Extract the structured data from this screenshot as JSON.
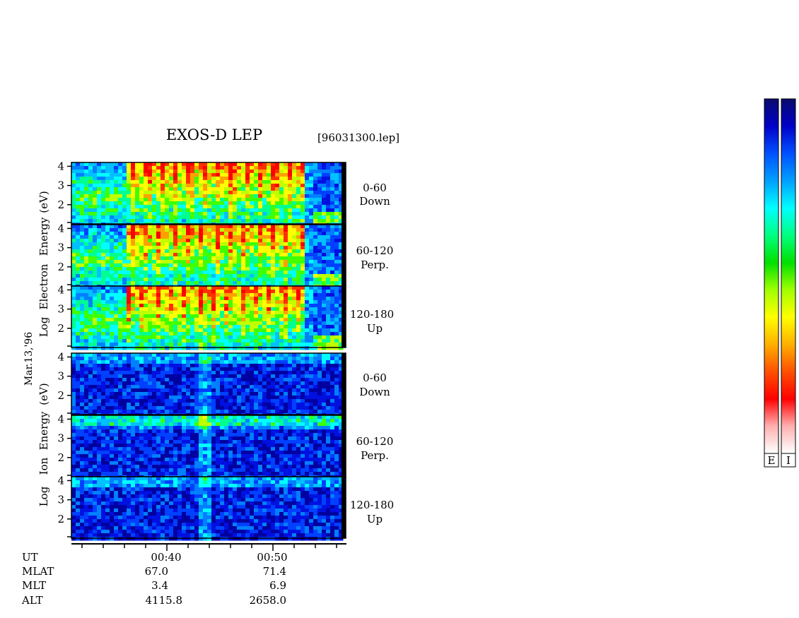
{
  "chart_data": {
    "type": "heatmap",
    "title": "EXOS-D LEP",
    "file_label": "[96031300.lep]",
    "date_label": "Mar.13,'96",
    "panel_groups": [
      {
        "name": "electron",
        "ylabel": [
          "Log",
          "Electron",
          "Energy",
          "(eV)"
        ],
        "ylim": [
          1,
          4.2
        ],
        "yticks": [
          "4",
          "3",
          "2"
        ],
        "panels": [
          {
            "angle": "0-60",
            "direction": "Down"
          },
          {
            "angle": "60-120",
            "direction": "Perp."
          },
          {
            "angle": "120-180",
            "direction": "Up"
          }
        ]
      },
      {
        "name": "ion",
        "ylabel": [
          "Log",
          "Ion",
          "Energy",
          "(eV)"
        ],
        "ylim": [
          1,
          4.2
        ],
        "yticks": [
          "4",
          "3",
          "2"
        ],
        "panels": [
          {
            "angle": "0-60",
            "direction": "Down"
          },
          {
            "angle": "60-120",
            "direction": "Perp."
          },
          {
            "angle": "120-180",
            "direction": "Up"
          }
        ]
      }
    ],
    "xaxis": {
      "row_labels": [
        "UT",
        "MLAT",
        "MLT",
        "ALT"
      ],
      "tick_columns": [
        {
          "UT": "00:40",
          "MLAT": "67.0",
          "MLT": "3.4",
          "ALT": "4115.8"
        },
        {
          "UT": "00:50",
          "MLAT": "71.4",
          "MLT": "6.9",
          "ALT": "2658.0"
        }
      ]
    },
    "colorbar_labels": [
      "E",
      "I"
    ],
    "colorscale": [
      "#0a0a6e",
      "#0000c8",
      "#0050ff",
      "#00a0ff",
      "#00ffff",
      "#00ff80",
      "#00e000",
      "#a0ff00",
      "#ffff00",
      "#ffb000",
      "#ff5000",
      "#ff0000",
      "#ffb0b0",
      "#ffffff"
    ]
  }
}
